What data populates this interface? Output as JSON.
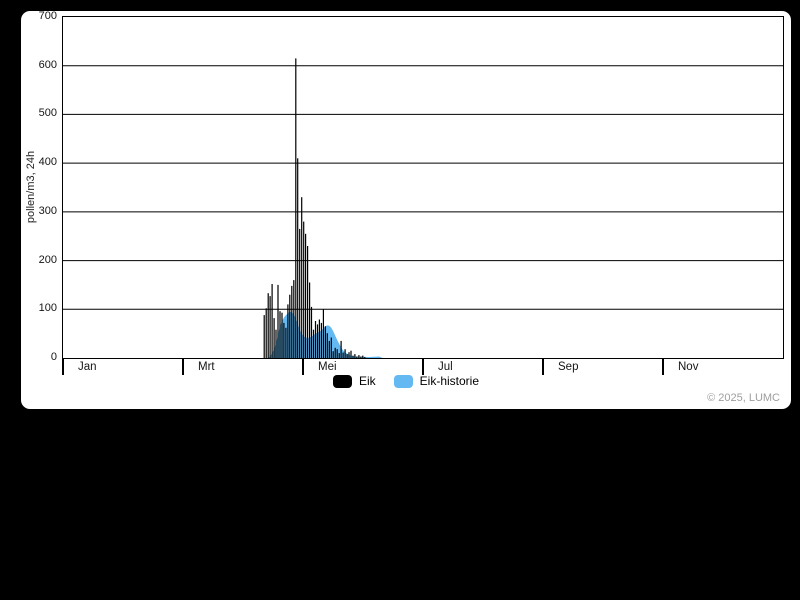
{
  "chart": {
    "ylabel": "pollen/m3, 24h",
    "copyright": "© 2025, LUMC",
    "accent_blue": "#64b9f2",
    "bar_black": "#000000"
  },
  "chart_data": {
    "type": "bar",
    "title": "",
    "xlabel": "",
    "ylabel": "pollen/m3, 24h",
    "ylim": [
      0,
      700
    ],
    "y_ticks": [
      0,
      100,
      200,
      300,
      400,
      500,
      600,
      700
    ],
    "grid": "horizontal",
    "legend_position": "bottom-center",
    "x_axis": {
      "unit": "day-of-year",
      "range_days": [
        0,
        365
      ],
      "month_ticks": [
        {
          "label": "Jan",
          "month_index": 0
        },
        {
          "label": "Mrt",
          "month_index": 2
        },
        {
          "label": "Mei",
          "month_index": 4
        },
        {
          "label": "Jul",
          "month_index": 6
        },
        {
          "label": "Sep",
          "month_index": 8
        },
        {
          "label": "Nov",
          "month_index": 10
        }
      ]
    },
    "series": [
      {
        "name": "Eik-historie",
        "type": "area",
        "color": "#64b9f2",
        "points": [
          [
            104,
            0
          ],
          [
            105,
            4
          ],
          [
            106,
            10
          ],
          [
            107,
            18
          ],
          [
            108,
            30
          ],
          [
            109,
            48
          ],
          [
            110,
            65
          ],
          [
            111,
            76
          ],
          [
            112,
            83
          ],
          [
            113,
            88
          ],
          [
            114,
            92
          ],
          [
            115,
            95
          ],
          [
            116,
            94
          ],
          [
            117,
            90
          ],
          [
            118,
            82
          ],
          [
            119,
            70
          ],
          [
            120,
            58
          ],
          [
            121,
            50
          ],
          [
            122,
            45
          ],
          [
            123,
            42
          ],
          [
            124,
            41
          ],
          [
            125,
            42
          ],
          [
            126,
            44
          ],
          [
            127,
            47
          ],
          [
            128,
            50
          ],
          [
            129,
            52
          ],
          [
            130,
            54
          ],
          [
            131,
            57
          ],
          [
            132,
            61
          ],
          [
            133,
            65
          ],
          [
            134,
            67
          ],
          [
            135,
            66
          ],
          [
            136,
            62
          ],
          [
            137,
            55
          ],
          [
            138,
            46
          ],
          [
            139,
            37
          ],
          [
            140,
            29
          ],
          [
            141,
            22
          ],
          [
            142,
            16
          ],
          [
            143,
            12
          ],
          [
            144,
            9
          ],
          [
            145,
            7
          ],
          [
            146,
            5
          ],
          [
            147,
            4
          ],
          [
            149,
            3
          ],
          [
            152,
            2.5
          ],
          [
            155,
            2
          ],
          [
            158,
            2.5
          ],
          [
            160,
            3
          ],
          [
            161,
            2
          ],
          [
            162,
            0
          ]
        ]
      },
      {
        "name": "Eik",
        "type": "bar",
        "color": "#000000",
        "points": [
          [
            102,
            88
          ],
          [
            103,
            102
          ],
          [
            104,
            133
          ],
          [
            105,
            127
          ],
          [
            106,
            152
          ],
          [
            107,
            82
          ],
          [
            108,
            58
          ],
          [
            109,
            150
          ],
          [
            110,
            96
          ],
          [
            111,
            93
          ],
          [
            112,
            72
          ],
          [
            113,
            62
          ],
          [
            114,
            110
          ],
          [
            115,
            130
          ],
          [
            116,
            148
          ],
          [
            117,
            160
          ],
          [
            118,
            615
          ],
          [
            119,
            410
          ],
          [
            120,
            265
          ],
          [
            121,
            330
          ],
          [
            122,
            280
          ],
          [
            123,
            255
          ],
          [
            124,
            230
          ],
          [
            125,
            155
          ],
          [
            126,
            105
          ],
          [
            127,
            58
          ],
          [
            128,
            76
          ],
          [
            129,
            69
          ],
          [
            130,
            79
          ],
          [
            131,
            72
          ],
          [
            132,
            100
          ],
          [
            133,
            65
          ],
          [
            134,
            51
          ],
          [
            135,
            35
          ],
          [
            136,
            42
          ],
          [
            137,
            14
          ],
          [
            138,
            21
          ],
          [
            139,
            18
          ],
          [
            140,
            10
          ],
          [
            141,
            35
          ],
          [
            142,
            11
          ],
          [
            143,
            18
          ],
          [
            144,
            8
          ],
          [
            145,
            12
          ],
          [
            146,
            15
          ],
          [
            147,
            5
          ],
          [
            148,
            8
          ],
          [
            149,
            3
          ],
          [
            150,
            6
          ],
          [
            151,
            3
          ],
          [
            152,
            5
          ],
          [
            153,
            2
          ]
        ]
      }
    ]
  }
}
